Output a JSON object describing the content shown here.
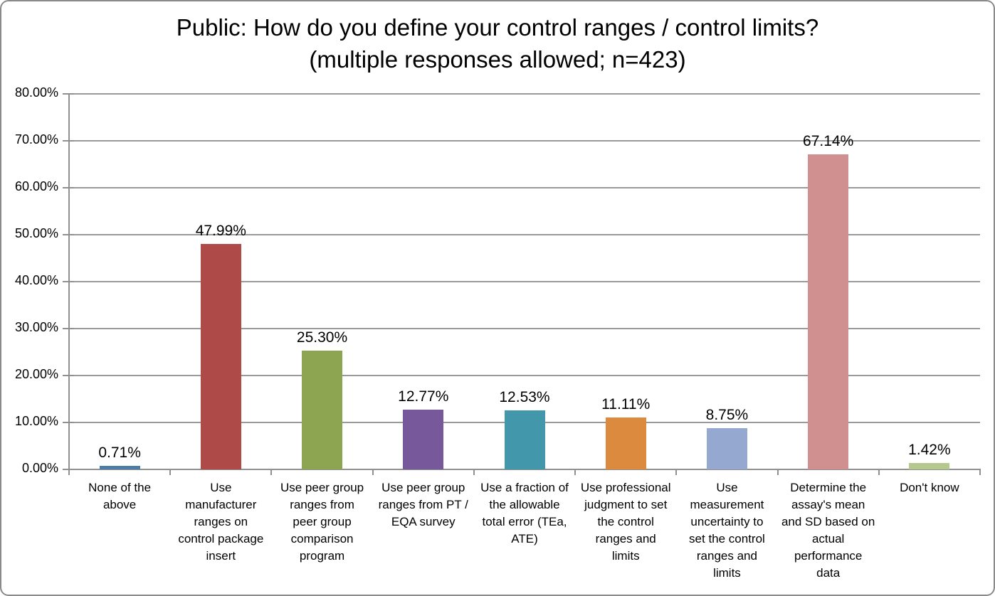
{
  "chart_data": {
    "type": "bar",
    "title": "Public: How do you define your control ranges / control limits?",
    "subtitle": "(multiple responses allowed; n=423)",
    "categories": [
      "None of the\nabove",
      "Use\nmanufacturer\nranges on\ncontrol package\ninsert",
      "Use peer group\nranges from\npeer group\ncomparison\nprogram",
      "Use peer group\nranges from PT /\nEQA survey",
      "Use a fraction of\nthe allowable\ntotal error (TEa,\nATE)",
      "Use professional\njudgment to set\nthe control\nranges and\nlimits",
      "Use\nmeasurement\nuncertainty to\nset the control\nranges and\nlimits",
      "Determine the\nassay's mean\nand SD based on\nactual\nperformance\ndata",
      "Don't know"
    ],
    "values": [
      0.71,
      47.99,
      25.3,
      12.77,
      12.53,
      11.11,
      8.75,
      67.14,
      1.42
    ],
    "data_labels": [
      "0.71%",
      "47.99%",
      "25.30%",
      "12.77%",
      "12.53%",
      "11.11%",
      "8.75%",
      "67.14%",
      "1.42%"
    ],
    "bar_colors": [
      "#4E7CA8",
      "#AE4A47",
      "#8DA551",
      "#76589B",
      "#4397AB",
      "#DC8A3E",
      "#95A8CF",
      "#D09090",
      "#B5C98E"
    ],
    "ylim": [
      0,
      80
    ],
    "ytick_step": 10,
    "ytick_labels": [
      "0.00%",
      "10.00%",
      "20.00%",
      "30.00%",
      "40.00%",
      "50.00%",
      "60.00%",
      "70.00%",
      "80.00%"
    ],
    "xlabel": "",
    "ylabel": "",
    "grid": "horizontal",
    "legend": "none",
    "colors": {
      "gridline": "#9a9a9a",
      "axis": "#909090",
      "text": "#000000",
      "frame_border": "#8a8a8a",
      "background": "#ffffff"
    }
  }
}
